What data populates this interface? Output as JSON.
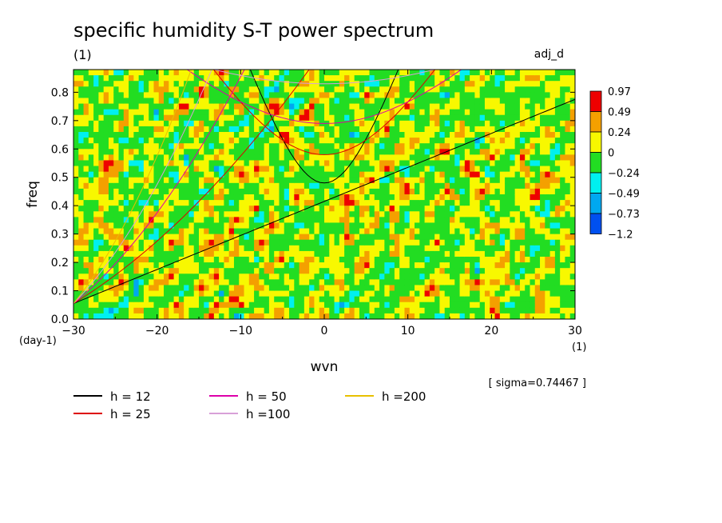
{
  "chart_data": {
    "type": "heatmap",
    "title": "specific humidity S-T power spectrum",
    "subtitle_left": "(1)",
    "subtitle_right": "adj_d",
    "xlabel": "wvn",
    "ylabel": "freq",
    "x_unit": "(1)",
    "y_unit": "(day-1)",
    "xlim": [
      -30,
      30
    ],
    "ylim": [
      0.0,
      0.88
    ],
    "x_ticks": [
      -30,
      -20,
      -10,
      0,
      10,
      20,
      30
    ],
    "x_tick_labels": [
      "−30",
      "−20",
      "−10",
      "0",
      "10",
      "20",
      "30"
    ],
    "y_ticks": [
      0.0,
      0.1,
      0.2,
      0.3,
      0.4,
      0.5,
      0.6,
      0.7,
      0.8
    ],
    "y_tick_labels": [
      "0.0",
      "0.1",
      "0.2",
      "0.3",
      "0.4",
      "0.5",
      "0.6",
      "0.7",
      "0.8"
    ],
    "colorbar": {
      "labels": [
        "0.97",
        "0.49",
        "0.24",
        "0",
        "−0.24",
        "−0.49",
        "−0.73",
        "−1.2"
      ],
      "colors": [
        "#ee0000",
        "#f4a000",
        "#f8f800",
        "#22dd22",
        "#00f0f0",
        "#00a8f0",
        "#0050f0"
      ]
    },
    "annotation": "[ sigma=0.74467 ]",
    "field_statistics": {
      "sigma": 0.74467,
      "dominant_levels": [
        "#f8f800",
        "#22dd22"
      ]
    },
    "dispersion_curves": [
      {
        "label": "h = 12",
        "color": "#000000"
      },
      {
        "label": "h = 25",
        "color": "#dd0000"
      },
      {
        "label": "h = 50",
        "color": "#dd00aa"
      },
      {
        "label": "h =100",
        "color": "#d8a0d8"
      },
      {
        "label": "h =200",
        "color": "#e8c000"
      }
    ]
  }
}
